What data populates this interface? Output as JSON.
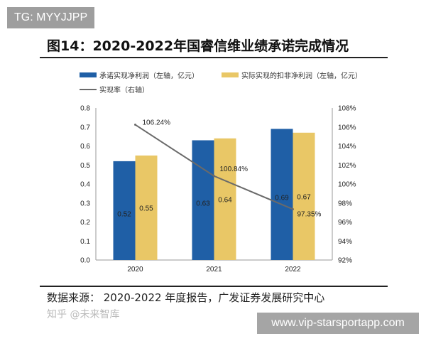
{
  "badge": "TG: MYYJJPP",
  "footer_site": "www.vip-starsportapp.com",
  "source": "数据来源：  2020-2022 年度报告，广发证券发展研究中心",
  "watermark": "知乎 @未来智库",
  "chart_data": {
    "type": "bar+line",
    "title": "图14：2020-2022年国睿信维业绩承诺完成情况",
    "categories": [
      "2020",
      "2021",
      "2022"
    ],
    "series": [
      {
        "name": "承诺实现净利润（左轴，亿元）",
        "type": "bar",
        "axis": "left",
        "color": "#1f5fa6",
        "values": [
          0.52,
          0.63,
          0.69
        ],
        "labels": [
          "0.52",
          "0.63",
          "0.69"
        ]
      },
      {
        "name": "实际实现的扣非净利润（左轴，亿元）",
        "type": "bar",
        "axis": "left",
        "color": "#e9c766",
        "values": [
          0.55,
          0.64,
          0.67
        ],
        "labels": [
          "0.55",
          "0.64",
          "0.67"
        ]
      },
      {
        "name": "实现率（右轴）",
        "type": "line",
        "axis": "right",
        "color": "#6a6a6a",
        "values": [
          106.24,
          100.84,
          97.35
        ],
        "labels": [
          "106.24%",
          "100.84%",
          "97.35%"
        ]
      }
    ],
    "left_axis": {
      "range": [
        0,
        0.8
      ],
      "ticks": [
        "0.0",
        "0.1",
        "0.2",
        "0.3",
        "0.4",
        "0.5",
        "0.6",
        "0.7",
        "0.8"
      ]
    },
    "right_axis": {
      "range": [
        92,
        108
      ],
      "ticks": [
        "92%",
        "94%",
        "96%",
        "98%",
        "100%",
        "102%",
        "104%",
        "106%",
        "108%"
      ]
    },
    "grid": false,
    "legend": "top"
  }
}
